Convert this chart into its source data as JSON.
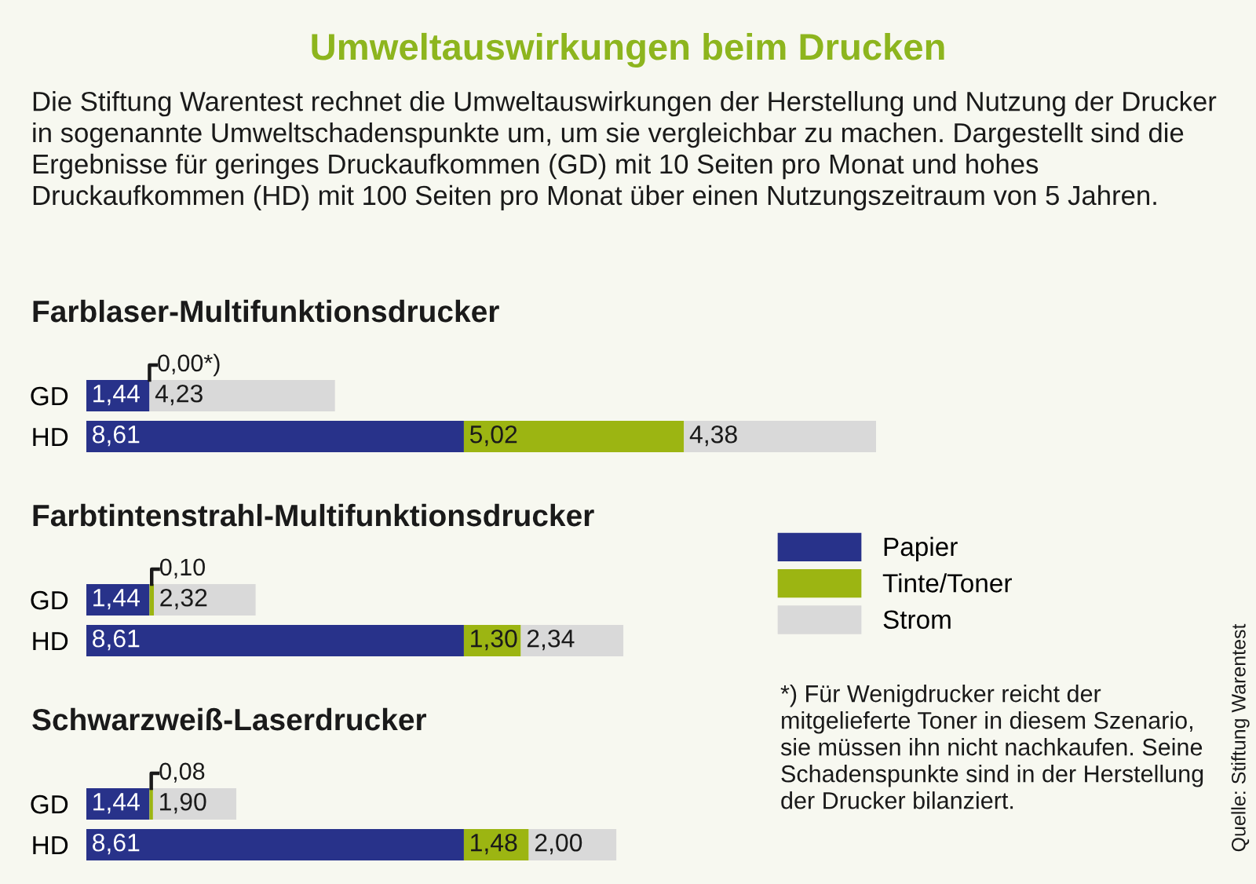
{
  "chart_data": [
    {
      "type": "other",
      "title": "Umweltauswirkungen beim Drucken",
      "subtitle": "Die Stiftung Warentest rechnet die Umweltauswirkungen der Herstellung und Nutzung der Drucker in sogenannte Umweltschadenspunkte um, um sie vergleichbar zu machen. Dargestellt sind die Ergebnisse für geringes Druckaufkommen (GD) mit 10 Seiten pro Monat und hohes Druckaufkommen (HD) mit 100 Seiten pro Monat über einen Nutzungszeitraum von 5 Jahren.",
      "annotations": [
        "*) Für Wenigdrucker reicht der mitgelieferte Toner in diesem Szenario, sie müssen ihn nicht nachkaufen. Seine Schadenspunkte sind in der Herstellung der Drucker bilanziert.",
        "Quelle: Stiftung Warentest"
      ]
    },
    {
      "type": "bar",
      "orientation": "horizontal",
      "stacked": true,
      "title": "Farblaser-Multifunktionsdrucker",
      "categories": [
        "GD",
        "HD"
      ],
      "tick_labels": "y",
      "series": [
        {
          "color": "#28328a",
          "values": [
            1.44,
            8.61
          ],
          "value_labels": [
            "1,44",
            "8,61"
          ]
        },
        {
          "color": "#9cb512",
          "values": [
            0.0,
            5.02
          ],
          "value_labels": [
            null,
            "5,02"
          ]
        },
        {
          "color": "#d9d9d9",
          "values": [
            4.23,
            4.38
          ],
          "value_labels": [
            "4,23",
            "4,38"
          ]
        }
      ],
      "annotations": [
        {
          "text": "0,00*)",
          "x": 1.44,
          "y": "GD"
        }
      ]
    },
    {
      "type": "bar",
      "orientation": "horizontal",
      "stacked": true,
      "title": "Farbtintenstrahl-Multifunktionsdrucker",
      "categories": [
        "GD",
        "HD"
      ],
      "tick_labels": "y",
      "legend": "right",
      "series": [
        {
          "name": "Papier",
          "color": "#28328a",
          "values": [
            1.44,
            8.61
          ],
          "value_labels": [
            "1,44",
            "8,61"
          ]
        },
        {
          "name": "Tinte/Toner",
          "color": "#9cb512",
          "values": [
            0.1,
            1.3
          ],
          "value_labels": [
            "0,10",
            "1,30"
          ]
        },
        {
          "name": "Strom",
          "color": "#d9d9d9",
          "values": [
            2.32,
            2.34
          ],
          "value_labels": [
            "2,32",
            "2,34"
          ]
        }
      ]
    },
    {
      "type": "bar",
      "orientation": "horizontal",
      "stacked": true,
      "title": "Schwarzweiß-Laserdrucker",
      "categories": [
        "GD",
        "HD"
      ],
      "tick_labels": "y",
      "series": [
        {
          "color": "#28328a",
          "values": [
            1.44,
            8.61
          ],
          "value_labels": [
            "1,44",
            "8,61"
          ]
        },
        {
          "color": "#9cb512",
          "values": [
            0.08,
            1.48
          ],
          "value_labels": [
            "0,08",
            "1,48"
          ]
        },
        {
          "color": "#d9d9d9",
          "values": [
            1.9,
            2.0
          ],
          "value_labels": [
            "1,90",
            "2,00"
          ]
        }
      ]
    }
  ]
}
